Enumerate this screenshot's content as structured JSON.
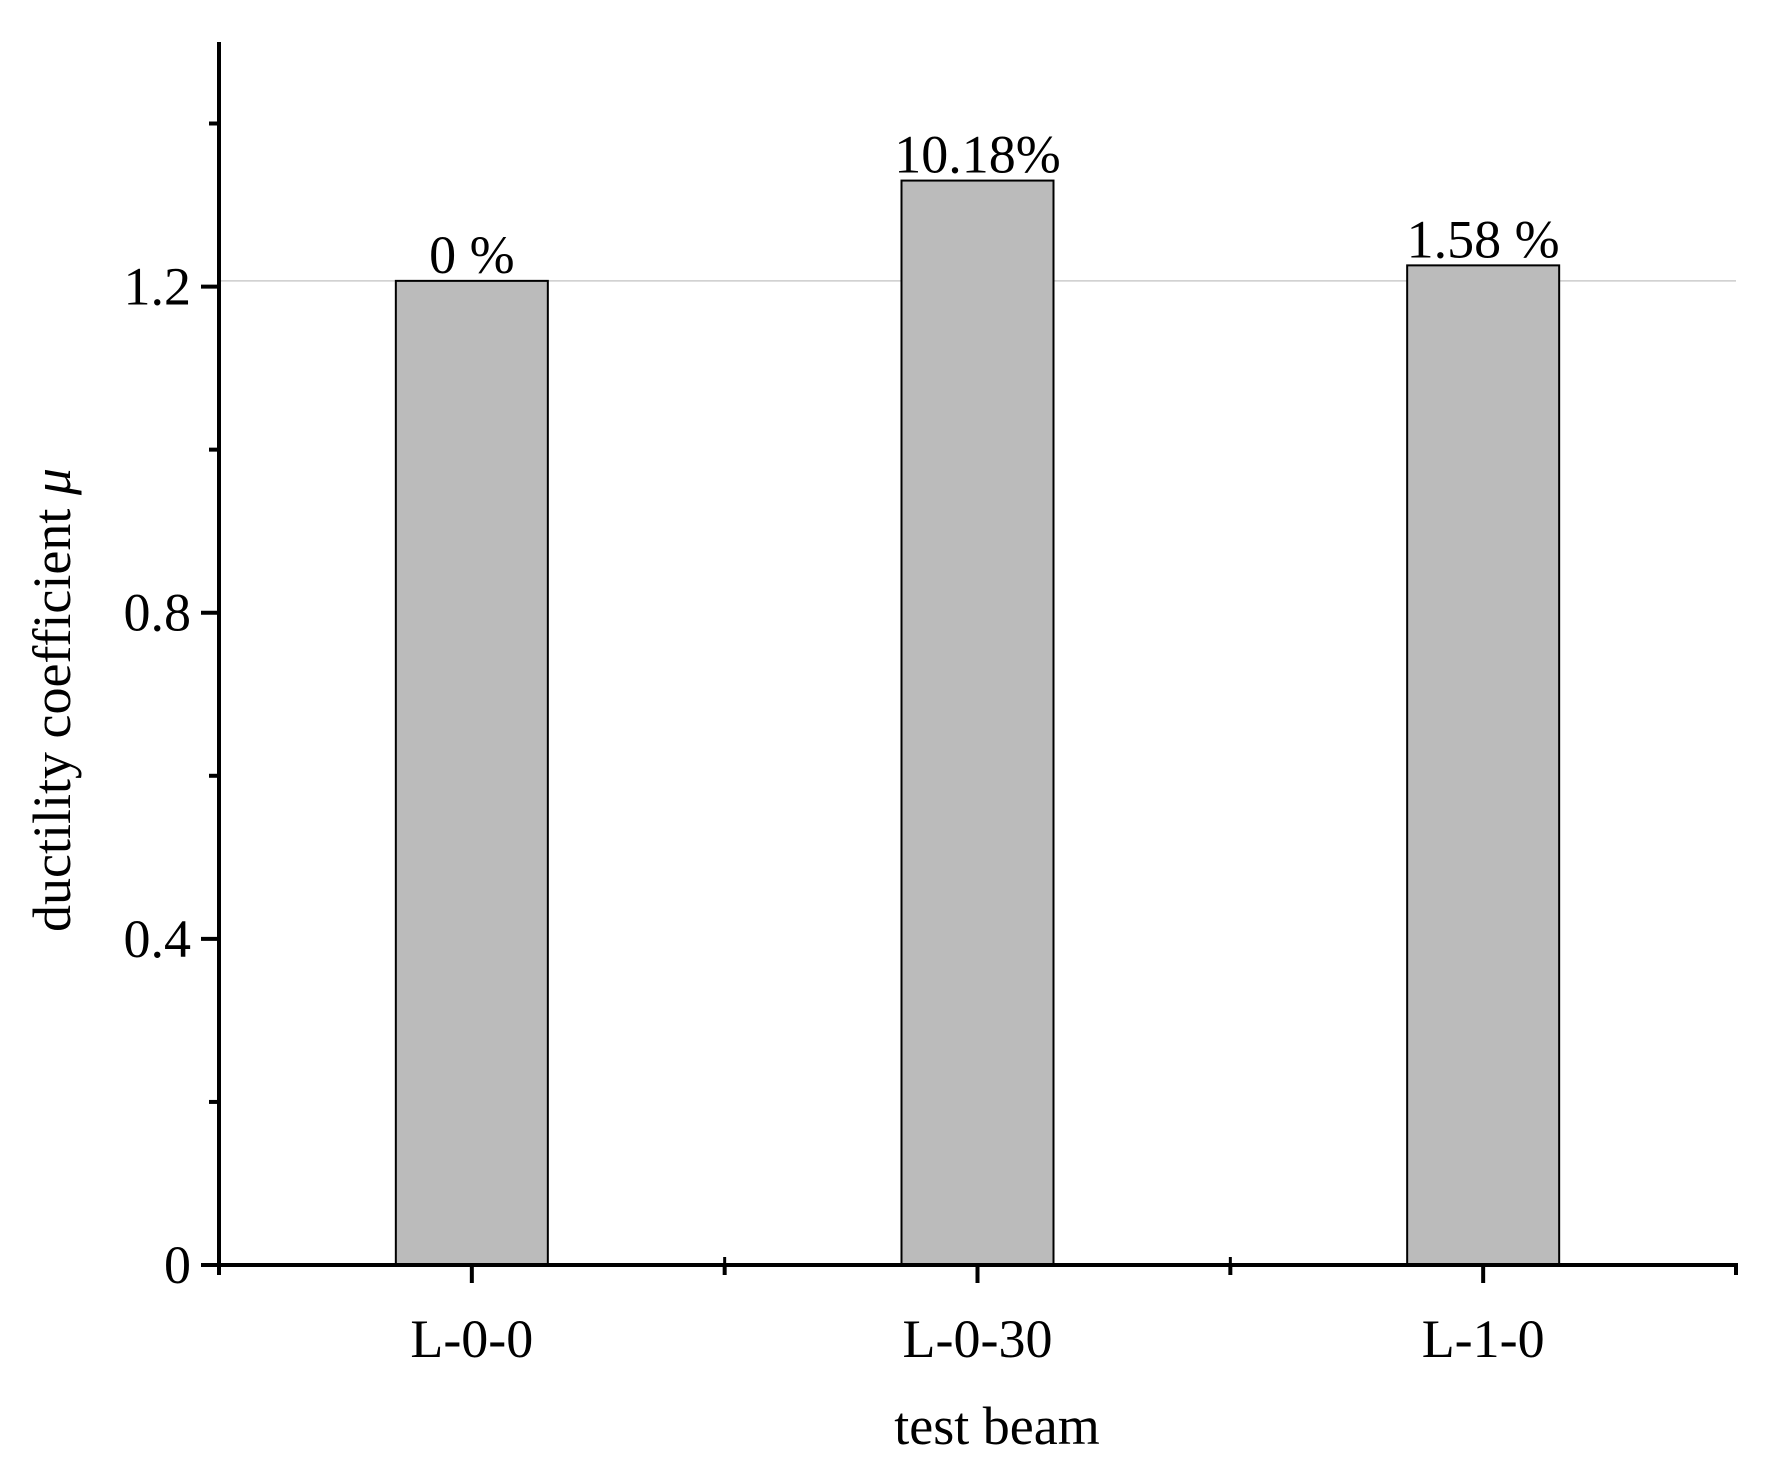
{
  "chart_data": {
    "type": "bar",
    "categories": [
      "L-0-0",
      "L-0-30",
      "L-1-0"
    ],
    "values": [
      1.207,
      1.33,
      1.226
    ],
    "data_labels": [
      "0 %",
      "10.18%",
      "1.58 %"
    ],
    "xlabel": "test beam",
    "ylabel_text": "ductility coefficient ",
    "ylabel_symbol": "μ",
    "ylim": [
      0,
      1.5
    ],
    "yticks": [
      0,
      0.4,
      0.8,
      1.2
    ],
    "ytick_labels": [
      "0",
      "0.4",
      "0.8",
      "1.2"
    ],
    "reference_line": 1.207,
    "grid": false,
    "bar_color": "#bbbbbb",
    "edge_color": "#000000",
    "reference_line_color": "#cccccc"
  }
}
